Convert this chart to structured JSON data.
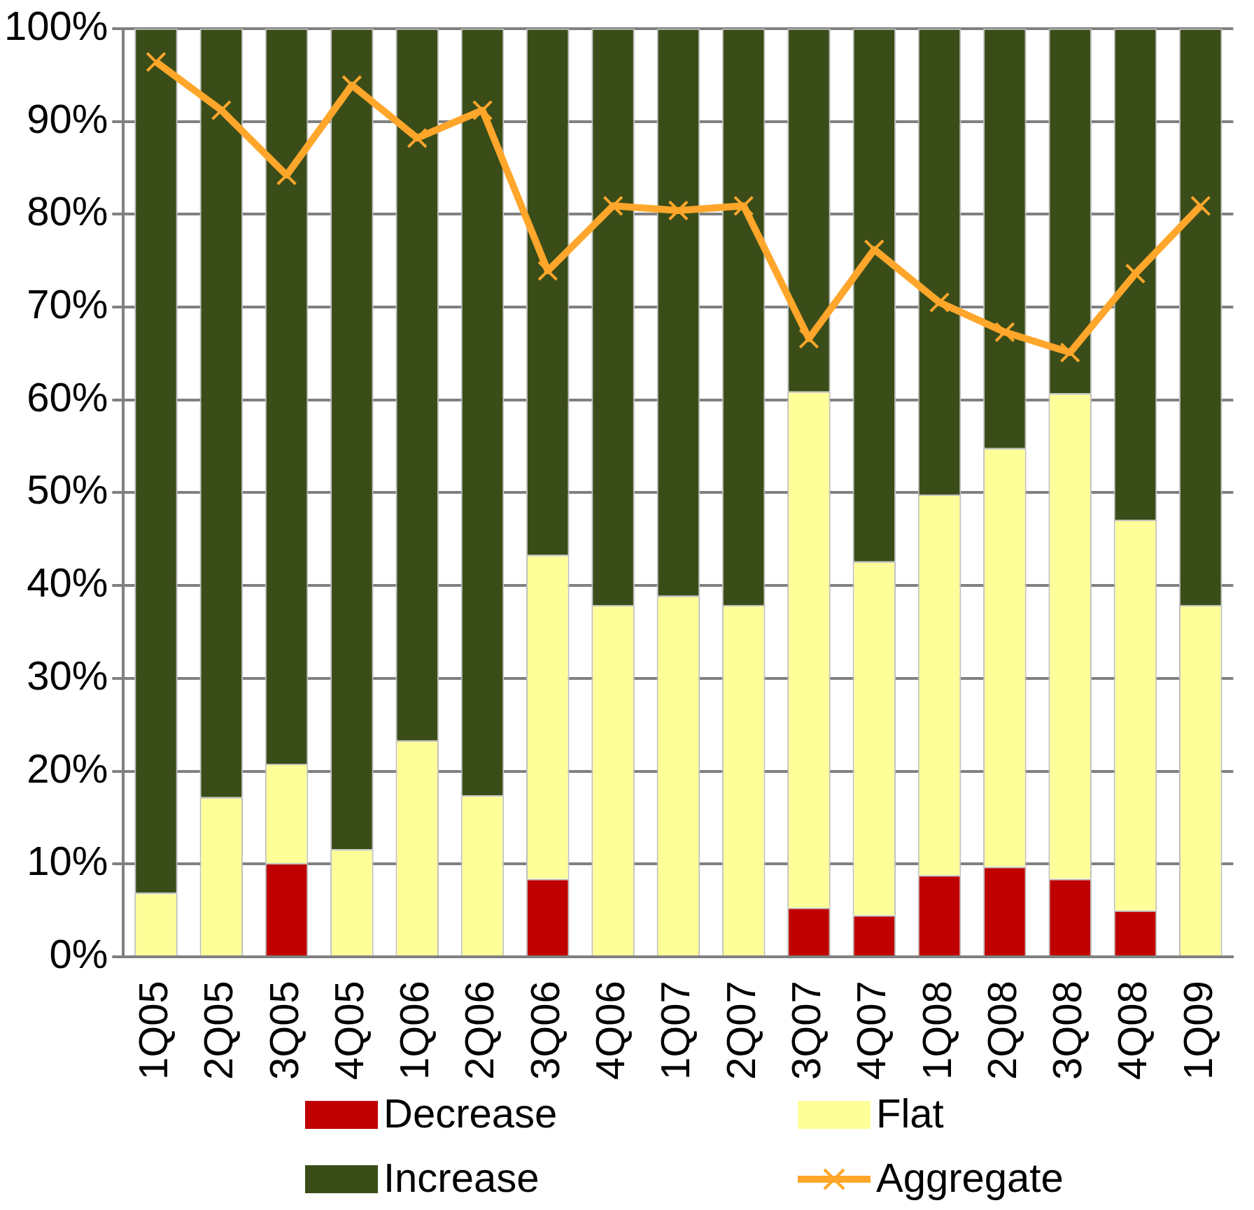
{
  "chart_data": {
    "type": "bar",
    "stacked": true,
    "categories": [
      "1Q05",
      "2Q05",
      "3Q05",
      "4Q05",
      "1Q06",
      "2Q06",
      "3Q06",
      "4Q06",
      "1Q07",
      "2Q07",
      "3Q07",
      "4Q07",
      "1Q08",
      "2Q08",
      "3Q08",
      "4Q08",
      "1Q09"
    ],
    "series": [
      {
        "name": "Decrease",
        "color": "#c00000",
        "values": [
          0,
          0,
          10.1,
          0,
          0,
          0,
          8.4,
          0,
          0,
          0,
          5.3,
          4.5,
          8.8,
          9.7,
          8.4,
          5,
          0
        ]
      },
      {
        "name": "Flat",
        "color": "#ffff99",
        "values": [
          6.9,
          17.2,
          10.7,
          11.6,
          23.3,
          17.4,
          34.9,
          37.9,
          38.9,
          37.9,
          55.6,
          38.1,
          41,
          45.1,
          52.3,
          42.1,
          37.9
        ]
      },
      {
        "name": "Increase",
        "color": "#3a4d18",
        "values": [
          93.1,
          82.8,
          79.2,
          88.4,
          76.7,
          82.6,
          56.7,
          62.1,
          61.1,
          62.1,
          39.1,
          57.4,
          50.2,
          45.2,
          39.3,
          52.9,
          62.1
        ]
      },
      {
        "name": "Aggregate",
        "type": "line",
        "color": "#ffa62b",
        "marker": "cross",
        "values": [
          96.4,
          91.2,
          84.2,
          93.9,
          88.2,
          91.2,
          73.9,
          80.9,
          80.4,
          80.9,
          66.6,
          76.2,
          70.5,
          67.3,
          65.1,
          73.6,
          80.9
        ]
      }
    ],
    "ylim": [
      0,
      100
    ],
    "yticks": [
      {
        "value": 0,
        "label": "0%"
      },
      {
        "value": 10,
        "label": "10%"
      },
      {
        "value": 20,
        "label": "20%"
      },
      {
        "value": 30,
        "label": "30%"
      },
      {
        "value": 40,
        "label": "40%"
      },
      {
        "value": 50,
        "label": "50%"
      },
      {
        "value": 60,
        "label": "60%"
      },
      {
        "value": 70,
        "label": "70%"
      },
      {
        "value": 80,
        "label": "80%"
      },
      {
        "value": 90,
        "label": "90%"
      },
      {
        "value": 100,
        "label": "100%"
      }
    ],
    "grid": "y",
    "legend": "bottom"
  }
}
